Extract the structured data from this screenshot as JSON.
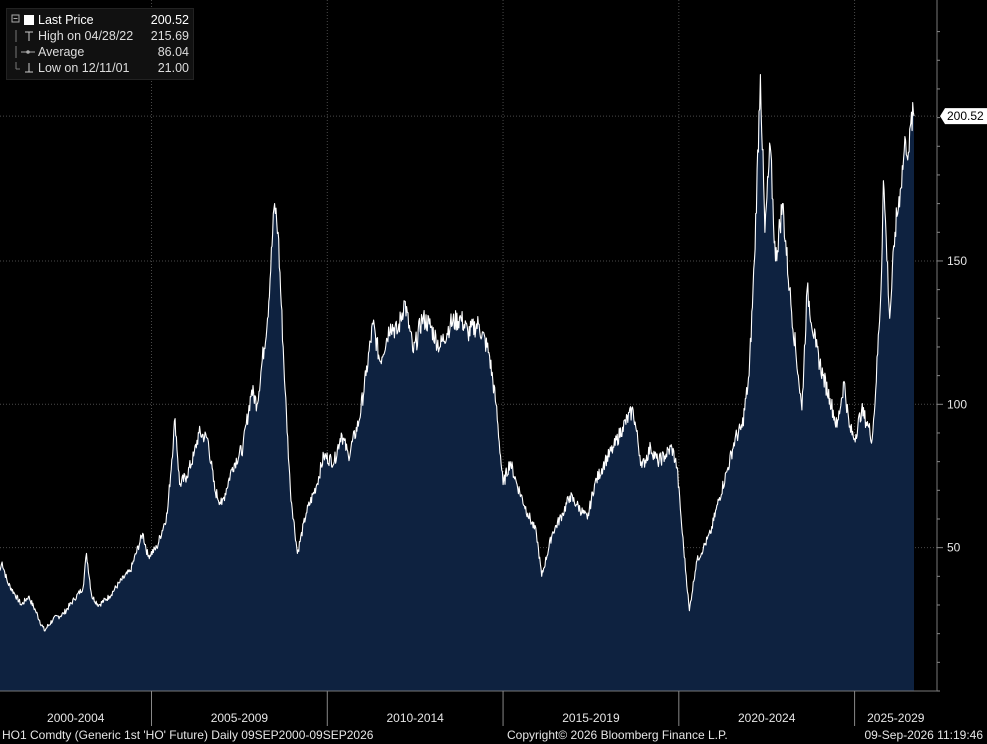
{
  "legend": {
    "rows": [
      {
        "label": "Last Price",
        "value": "200.52",
        "icon": "filled-square-icon"
      },
      {
        "label": "High on 04/28/22",
        "value": "215.69",
        "icon": "high-marker-icon"
      },
      {
        "label": "Average",
        "value": "86.04",
        "icon": "average-line-icon"
      },
      {
        "label": "Low on 12/11/01",
        "value": "21.00",
        "icon": "low-marker-icon"
      }
    ]
  },
  "footer": {
    "left": "HO1 Comdty (Generic 1st 'HO' Future) Daily 09SEP2000-09SEP2026",
    "center": "Copyright© 2026 Bloomberg Finance L.P.",
    "right": "09-Sep-2026 11:19:46"
  },
  "colors": {
    "background": "#000000",
    "area_fill": "#0e2240",
    "line": "#ffffff",
    "grid": "#555555"
  },
  "chart_data": {
    "type": "area",
    "x_labels": [
      "2000-2004",
      "2005-2009",
      "2010-2014",
      "2015-2019",
      "2020-2024",
      "2025-2029"
    ],
    "y_ticks": [
      50,
      100,
      150
    ],
    "y_tick_labels": [
      "50",
      "100",
      "150"
    ],
    "ylim": [
      0,
      233
    ],
    "xlim": [
      2000.69,
      2026.69
    ],
    "grid": true,
    "last_value_label": "200.52",
    "series": [
      {
        "values": [
          [
            2000.69,
            42
          ],
          [
            2000.75,
            45
          ],
          [
            2000.9,
            38
          ],
          [
            2001.1,
            34
          ],
          [
            2001.3,
            30
          ],
          [
            2001.5,
            33
          ],
          [
            2001.7,
            28
          ],
          [
            2001.95,
            21
          ],
          [
            2002.2,
            25
          ],
          [
            2002.5,
            27
          ],
          [
            2002.8,
            32
          ],
          [
            2003.05,
            36
          ],
          [
            2003.15,
            48
          ],
          [
            2003.3,
            33
          ],
          [
            2003.5,
            30
          ],
          [
            2003.8,
            33
          ],
          [
            2004.1,
            38
          ],
          [
            2004.4,
            42
          ],
          [
            2004.75,
            55
          ],
          [
            2004.9,
            47
          ],
          [
            2005.15,
            50
          ],
          [
            2005.45,
            62
          ],
          [
            2005.67,
            95
          ],
          [
            2005.8,
            72
          ],
          [
            2006.0,
            75
          ],
          [
            2006.2,
            82
          ],
          [
            2006.35,
            90
          ],
          [
            2006.6,
            88
          ],
          [
            2006.8,
            70
          ],
          [
            2007.0,
            65
          ],
          [
            2007.3,
            78
          ],
          [
            2007.6,
            85
          ],
          [
            2007.85,
            105
          ],
          [
            2008.0,
            100
          ],
          [
            2008.3,
            130
          ],
          [
            2008.5,
            170
          ],
          [
            2008.6,
            160
          ],
          [
            2008.8,
            105
          ],
          [
            2008.95,
            70
          ],
          [
            2009.15,
            48
          ],
          [
            2009.4,
            62
          ],
          [
            2009.7,
            72
          ],
          [
            2009.9,
            82
          ],
          [
            2010.2,
            80
          ],
          [
            2010.4,
            90
          ],
          [
            2010.6,
            82
          ],
          [
            2010.9,
            94
          ],
          [
            2011.1,
            110
          ],
          [
            2011.3,
            128
          ],
          [
            2011.5,
            115
          ],
          [
            2011.8,
            128
          ],
          [
            2012.0,
            125
          ],
          [
            2012.2,
            136
          ],
          [
            2012.45,
            118
          ],
          [
            2012.7,
            130
          ],
          [
            2012.9,
            128
          ],
          [
            2013.2,
            120
          ],
          [
            2013.5,
            128
          ],
          [
            2013.8,
            130
          ],
          [
            2014.0,
            125
          ],
          [
            2014.3,
            128
          ],
          [
            2014.6,
            118
          ],
          [
            2014.8,
            100
          ],
          [
            2015.0,
            72
          ],
          [
            2015.2,
            80
          ],
          [
            2015.4,
            72
          ],
          [
            2015.7,
            62
          ],
          [
            2015.95,
            55
          ],
          [
            2016.1,
            40
          ],
          [
            2016.4,
            55
          ],
          [
            2016.7,
            62
          ],
          [
            2016.9,
            68
          ],
          [
            2017.1,
            65
          ],
          [
            2017.4,
            60
          ],
          [
            2017.6,
            72
          ],
          [
            2017.9,
            80
          ],
          [
            2018.15,
            85
          ],
          [
            2018.4,
            92
          ],
          [
            2018.7,
            98
          ],
          [
            2018.95,
            78
          ],
          [
            2019.2,
            85
          ],
          [
            2019.4,
            80
          ],
          [
            2019.6,
            82
          ],
          [
            2019.8,
            85
          ],
          [
            2019.95,
            78
          ],
          [
            2020.1,
            55
          ],
          [
            2020.3,
            28
          ],
          [
            2020.5,
            45
          ],
          [
            2020.7,
            50
          ],
          [
            2020.9,
            55
          ],
          [
            2021.1,
            65
          ],
          [
            2021.4,
            78
          ],
          [
            2021.6,
            88
          ],
          [
            2021.8,
            92
          ],
          [
            2022.0,
            110
          ],
          [
            2022.15,
            150
          ],
          [
            2022.32,
            215
          ],
          [
            2022.45,
            160
          ],
          [
            2022.6,
            190
          ],
          [
            2022.75,
            150
          ],
          [
            2022.95,
            170
          ],
          [
            2023.15,
            140
          ],
          [
            2023.4,
            110
          ],
          [
            2023.5,
            98
          ],
          [
            2023.65,
            140
          ],
          [
            2023.9,
            120
          ],
          [
            2024.1,
            110
          ],
          [
            2024.3,
            102
          ],
          [
            2024.5,
            92
          ],
          [
            2024.7,
            108
          ],
          [
            2024.85,
            92
          ],
          [
            2025.0,
            88
          ],
          [
            2025.2,
            98
          ],
          [
            2025.4,
            92
          ],
          [
            2025.5,
            88
          ],
          [
            2025.6,
            105
          ],
          [
            2025.75,
            140
          ],
          [
            2025.82,
            178
          ],
          [
            2025.9,
            158
          ],
          [
            2026.0,
            130
          ],
          [
            2026.15,
            160
          ],
          [
            2026.3,
            175
          ],
          [
            2026.45,
            192
          ],
          [
            2026.55,
            188
          ],
          [
            2026.6,
            198
          ],
          [
            2026.69,
            200.52
          ]
        ]
      }
    ]
  }
}
